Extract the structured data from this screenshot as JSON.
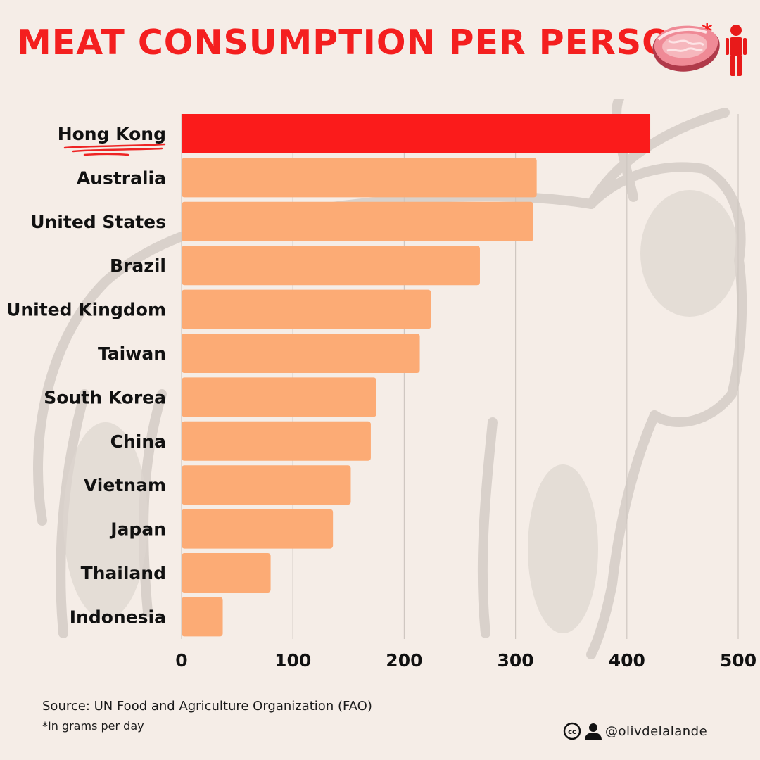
{
  "header": {
    "title": "MEAT CONSUMPTION PER PERSON",
    "title_mark": "*",
    "icons": [
      "steak-icon",
      "person-icon"
    ]
  },
  "chart_data": {
    "type": "bar",
    "orientation": "horizontal",
    "categories": [
      "Hong Kong",
      "Australia",
      "United States",
      "Brazil",
      "United Kingdom",
      "Taiwan",
      "South Korea",
      "China",
      "Vietnam",
      "Japan",
      "Thailand",
      "Indonesia"
    ],
    "values": [
      421,
      319,
      316,
      268,
      224,
      214,
      175,
      170,
      152,
      136,
      80,
      37
    ],
    "highlight_category": "Hong Kong",
    "xlim": [
      0,
      500
    ],
    "xticks": [
      0,
      100,
      200,
      300,
      400,
      500
    ],
    "grid": true,
    "colors": {
      "highlight": "#fb1b1b",
      "bar": "#fcab75",
      "grid": "#cfc7c1",
      "underline": "#ee2424"
    },
    "title": "",
    "xlabel": "",
    "ylabel": ""
  },
  "footer": {
    "source": "Source: UN Food and Agriculture Organization (FAO)",
    "note": "*In grams per day",
    "handle": "@olivdelalande",
    "icons": [
      "creative-commons-icon",
      "user-icon"
    ]
  },
  "colors": {
    "background": "#f5ede7",
    "title": "#f41f1f",
    "watermark": "#d9d1cb"
  }
}
